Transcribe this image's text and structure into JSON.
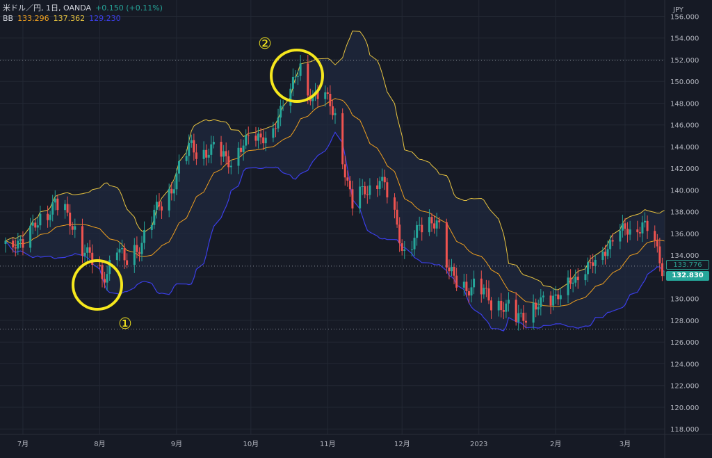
{
  "legend": {
    "symbol": "米ドル／円, 1日, OANDA",
    "change": "+0.150 (+0.11%)",
    "bb_label": "BB",
    "bb_basis": "133.296",
    "bb_upper": "137.362",
    "bb_lower": "129.230"
  },
  "price_tags": {
    "upper": "133.776",
    "last": "132.830"
  },
  "annotations": {
    "circle1": "①",
    "circle2": "②"
  },
  "colors": {
    "background": "#161a25",
    "grid": "#232834",
    "up": "#26a69a",
    "down": "#ef5350",
    "basis": "#f0a020",
    "upper": "#e8c440",
    "lower": "#3b3ee8",
    "annotation": "#f5e71d"
  },
  "chart_data": {
    "type": "candlestick",
    "currency_label": "JPY",
    "y_ticks": [
      "156.000",
      "154.000",
      "152.000",
      "150.000",
      "148.000",
      "146.000",
      "144.000",
      "142.000",
      "140.000",
      "138.000",
      "136.000",
      "134.000",
      "132.000",
      "130.000",
      "128.000",
      "126.000",
      "124.000",
      "122.000",
      "120.000",
      "118.000"
    ],
    "ylim": [
      117.5,
      157.5
    ],
    "x_labels": [
      "7月",
      "8月",
      "9月",
      "10月",
      "11月",
      "12月",
      "2023",
      "2月",
      "3月"
    ],
    "x_label_dates": [
      "2022-07-01",
      "2022-08-01",
      "2022-09-01",
      "2022-10-01",
      "2022-11-01",
      "2022-12-01",
      "2023-01-01",
      "2023-02-01",
      "2023-03-01"
    ],
    "reference_lines": [
      151.95,
      133.0,
      127.2
    ],
    "anchors": [
      {
        "date": "2022-06-24",
        "close": 135.0
      },
      {
        "date": "2022-07-01",
        "close": 135.2
      },
      {
        "date": "2022-07-14",
        "close": 139.0
      },
      {
        "date": "2022-07-22",
        "close": 136.3
      },
      {
        "date": "2022-08-02",
        "close": 131.7
      },
      {
        "date": "2022-08-08",
        "close": 135.0
      },
      {
        "date": "2022-08-11",
        "close": 133.0
      },
      {
        "date": "2022-08-22",
        "close": 137.0
      },
      {
        "date": "2022-09-07",
        "close": 144.0
      },
      {
        "date": "2022-09-22",
        "close": 143.0
      },
      {
        "date": "2022-10-03",
        "close": 144.8
      },
      {
        "date": "2022-10-10",
        "close": 145.5
      },
      {
        "date": "2022-10-21",
        "close": 151.5
      },
      {
        "date": "2022-10-24",
        "close": 149.0
      },
      {
        "date": "2022-10-31",
        "close": 148.4
      },
      {
        "date": "2022-11-04",
        "close": 146.8
      },
      {
        "date": "2022-11-11",
        "close": 138.5
      },
      {
        "date": "2022-11-22",
        "close": 141.4
      },
      {
        "date": "2022-12-02",
        "close": 134.5
      },
      {
        "date": "2022-12-15",
        "close": 137.8
      },
      {
        "date": "2022-12-20",
        "close": 132.0
      },
      {
        "date": "2023-01-03",
        "close": 130.5
      },
      {
        "date": "2023-01-16",
        "close": 128.3
      },
      {
        "date": "2023-01-31",
        "close": 130.0
      },
      {
        "date": "2023-02-07",
        "close": 131.8
      },
      {
        "date": "2023-02-10",
        "close": 131.5
      },
      {
        "date": "2023-02-21",
        "close": 134.8
      },
      {
        "date": "2023-03-08",
        "close": 137.2
      },
      {
        "date": "2023-03-16",
        "close": 132.8
      }
    ],
    "bollinger": {
      "period": 20,
      "stddev": 2,
      "basis": 133.296,
      "upper": 137.362,
      "lower": 129.23
    }
  }
}
